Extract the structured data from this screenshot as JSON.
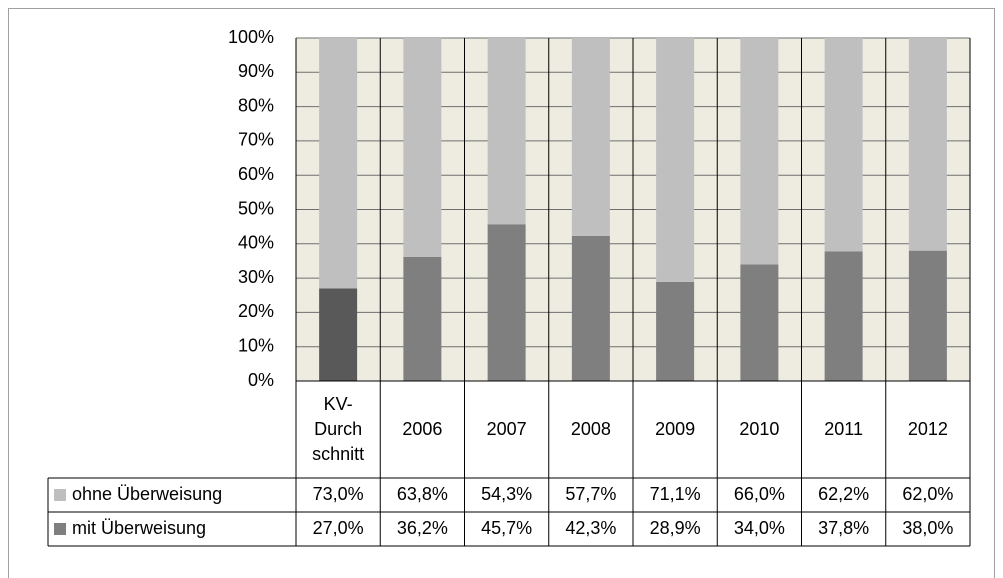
{
  "chart_data": {
    "type": "stacked_bar",
    "categories": [
      "KV-\nDurch\nschnitt",
      "2006",
      "2007",
      "2008",
      "2009",
      "2010",
      "2011",
      "2012"
    ],
    "series": [
      {
        "name": "ohne Überweisung",
        "color": "#bfbfbf",
        "values": [
          73.0,
          63.8,
          54.3,
          57.7,
          71.1,
          66.0,
          62.2,
          62.0
        ],
        "value_labels": [
          "73,0%",
          "63,8%",
          "54,3%",
          "57,7%",
          "71,1%",
          "66,0%",
          "62,2%",
          "62,0%"
        ]
      },
      {
        "name": "mit Überweisung",
        "color": "#7f7f7f",
        "colors": [
          "#595959",
          "#7f7f7f",
          "#7f7f7f",
          "#7f7f7f",
          "#7f7f7f",
          "#7f7f7f",
          "#7f7f7f",
          "#7f7f7f"
        ],
        "values": [
          27.0,
          36.2,
          45.7,
          42.3,
          28.9,
          34.0,
          37.8,
          38.0
        ],
        "value_labels": [
          "27,0%",
          "36,2%",
          "45,7%",
          "42,3%",
          "28,9%",
          "34,0%",
          "37,8%",
          "38,0%"
        ]
      }
    ],
    "ylim": [
      0,
      100
    ],
    "yticks": [
      {
        "value": 0,
        "label": "0%"
      },
      {
        "value": 10,
        "label": "10%"
      },
      {
        "value": 20,
        "label": "20%"
      },
      {
        "value": 30,
        "label": "30%"
      },
      {
        "value": 40,
        "label": "40%"
      },
      {
        "value": 50,
        "label": "50%"
      },
      {
        "value": 60,
        "label": "60%"
      },
      {
        "value": 70,
        "label": "70%"
      },
      {
        "value": 80,
        "label": "80%"
      },
      {
        "value": 90,
        "label": "90%"
      },
      {
        "value": 100,
        "label": "100%"
      }
    ],
    "grid": true,
    "plot_background": "#eeece1",
    "data_table": true
  }
}
